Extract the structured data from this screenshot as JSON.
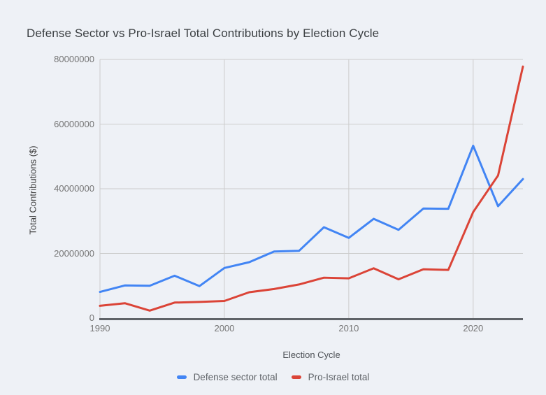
{
  "title": "Defense Sector vs Pro-Israel Total Contributions by Election Cycle",
  "chart_data": {
    "type": "line",
    "title": "Defense Sector vs Pro-Israel Total Contributions by Election Cycle",
    "xlabel": "Election Cycle",
    "ylabel": "Total Contributions ($)",
    "x": [
      1990,
      1992,
      1994,
      1996,
      1998,
      2000,
      2002,
      2004,
      2006,
      2008,
      2010,
      2012,
      2014,
      2016,
      2018,
      2020,
      2022,
      2024
    ],
    "series": [
      {
        "name": "Defense sector total",
        "color": "#4285f4",
        "values": [
          8100000,
          10100000,
          10000000,
          13100000,
          9900000,
          15500000,
          17300000,
          20600000,
          20800000,
          28100000,
          24800000,
          30700000,
          27300000,
          33900000,
          33800000,
          53300000,
          34600000,
          43000000
        ]
      },
      {
        "name": "Pro-Israel total",
        "color": "#db4437",
        "values": [
          3800000,
          4600000,
          2300000,
          4800000,
          5000000,
          5300000,
          8000000,
          9000000,
          10400000,
          12500000,
          12300000,
          15400000,
          12000000,
          15100000,
          14900000,
          32800000,
          44100000,
          77800000
        ]
      }
    ],
    "xlim": [
      1990,
      2024
    ],
    "ylim": [
      0,
      80000000
    ],
    "y_ticks": [
      0,
      20000000,
      40000000,
      60000000,
      80000000
    ],
    "x_ticks": [
      1990,
      2000,
      2010,
      2020
    ],
    "grid": true,
    "legend_position": "bottom"
  },
  "colors": {
    "background": "#eef1f6",
    "gridline": "#cccccc",
    "axis_line": "#5f6368",
    "tick_label": "#757575",
    "series_blue": "#4285f4",
    "series_red": "#db4437"
  }
}
